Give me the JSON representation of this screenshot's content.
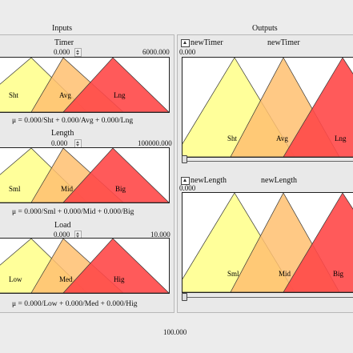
{
  "headers": {
    "inputs": "Inputs",
    "outputs": "Outputs"
  },
  "inputs": [
    {
      "name": "Timer",
      "value": "0.000",
      "max": "6000.000",
      "sets": [
        "Sht",
        "Avg",
        "Lng"
      ],
      "formula": "μ = 0.000/Sht + 0.000/Avg + 0.000/Lng"
    },
    {
      "name": "Length",
      "value": "0.000",
      "max": "100000.000",
      "sets": [
        "Sml",
        "Mid",
        "Big"
      ],
      "formula": "μ = 0.000/Sml + 0.000/Mid + 0.000/Big"
    },
    {
      "name": "Load",
      "value": "0.000",
      "max": "10.000",
      "sets": [
        "Low",
        "Med",
        "Hig"
      ],
      "formula": "μ = 0.000/Low + 0.000/Med + 0.000/Hig"
    }
  ],
  "outputs": [
    {
      "check_label": "newTimer",
      "name": "newTimer",
      "value": "0.000",
      "sets": [
        "Sht",
        "Avg",
        "Lng"
      ]
    },
    {
      "check_label": "newLength",
      "name": "newLength",
      "value": "0.000",
      "sets": [
        "Sml",
        "Mid",
        "Big"
      ]
    }
  ],
  "bottom_value": "100.000",
  "colors": {
    "low": "#ffff88",
    "mid": "#ffbf70",
    "high": "#ff4848"
  }
}
